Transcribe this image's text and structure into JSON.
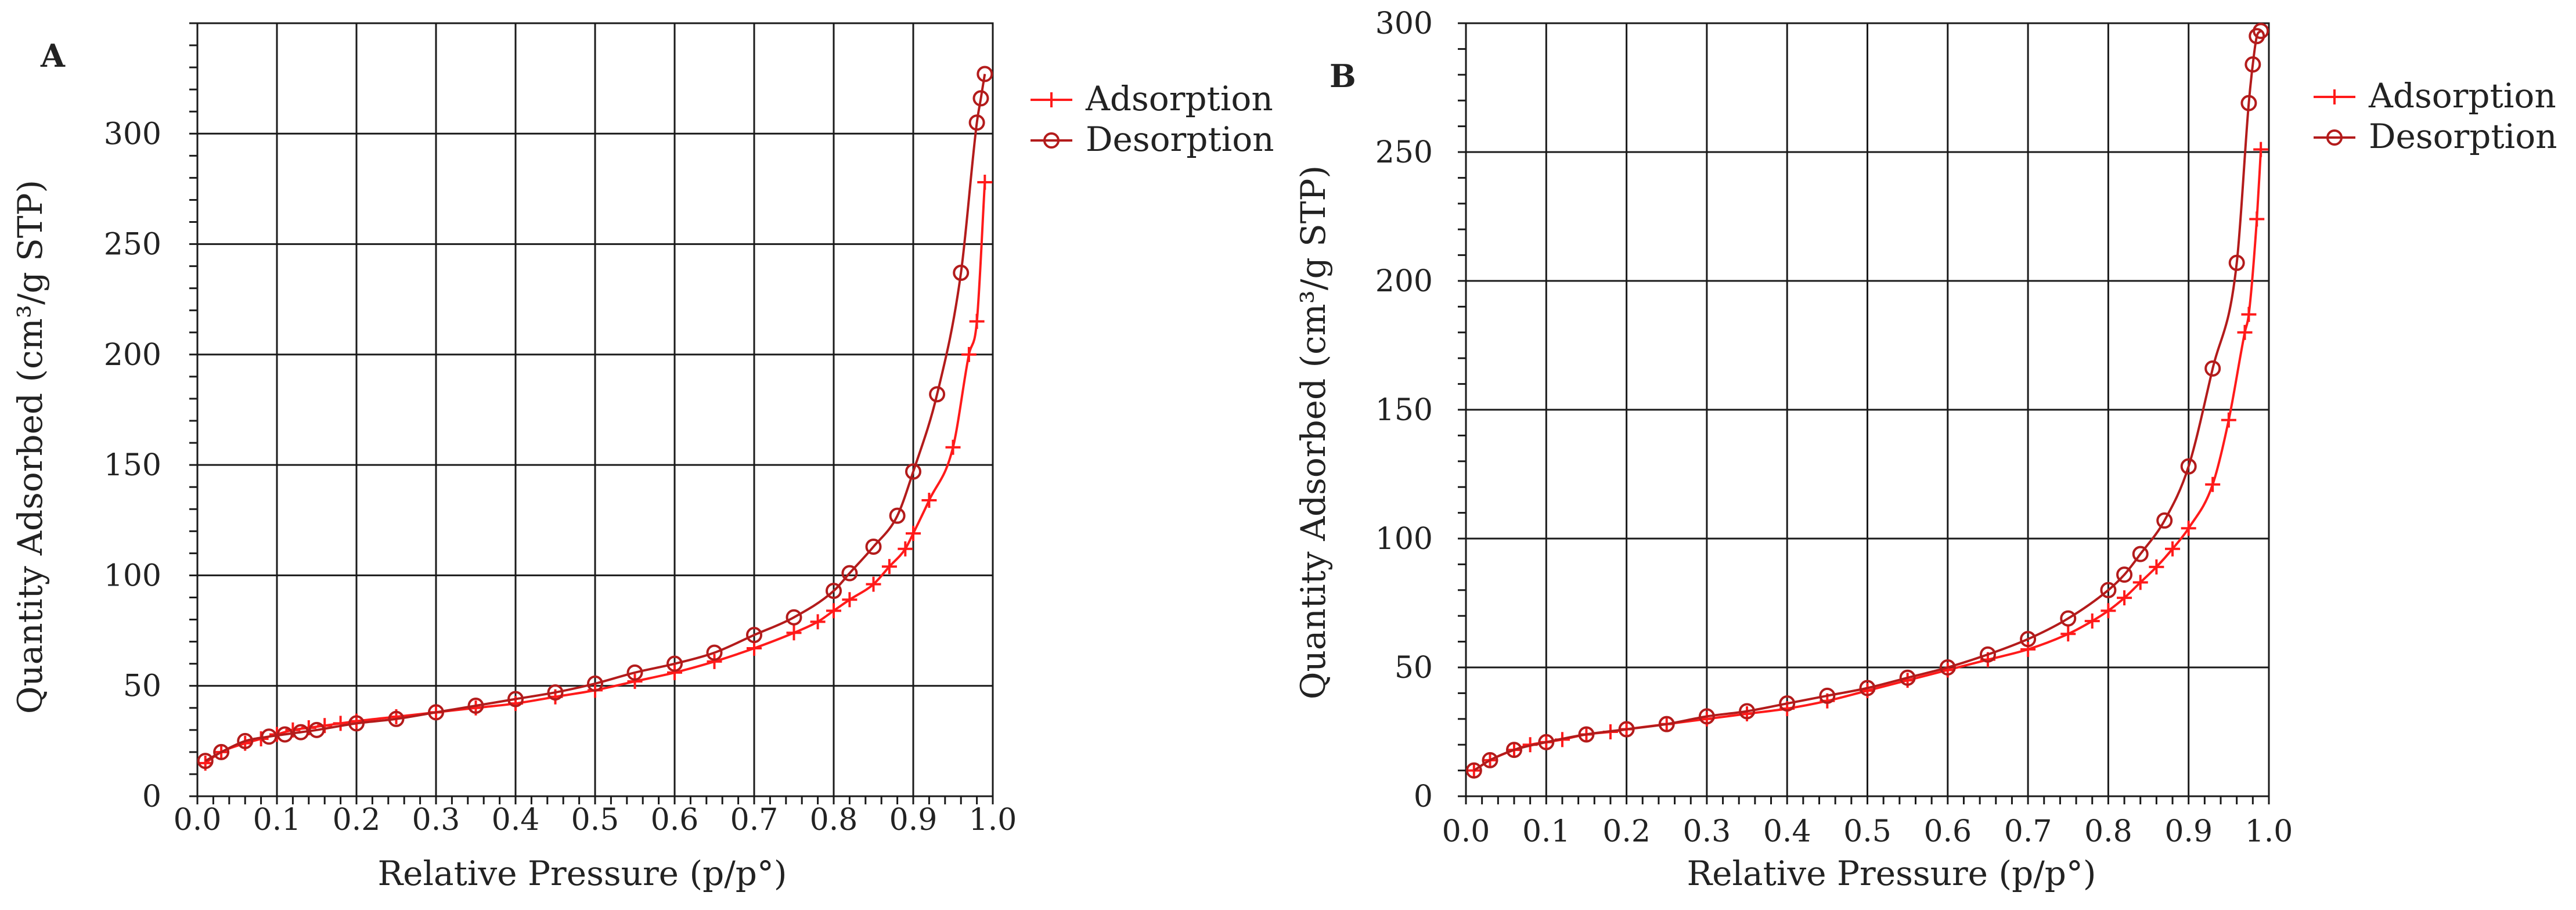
{
  "colors": {
    "adsorption": "#ff1a1a",
    "desorption": "#b31b1b",
    "grid": "#1a1a1a"
  },
  "chart_data": [
    {
      "type": "line",
      "panel": "A",
      "xlabel": "Relative Pressure (p/p°)",
      "ylabel": "Quantity Adsorbed (cm³/g STP)",
      "xlim": [
        0.0,
        1.0
      ],
      "ylim": [
        0,
        350
      ],
      "grid": true,
      "legend_position": "top-right-outside",
      "x_ticks": [
        "0.0",
        "0.1",
        "0.2",
        "0.3",
        "0.4",
        "0.5",
        "0.6",
        "0.7",
        "0.8",
        "0.9",
        "1.0"
      ],
      "y_ticks": [
        "0",
        "50",
        "100",
        "150",
        "200",
        "250",
        "300"
      ],
      "series": [
        {
          "name": "Adsorption",
          "marker": "plus",
          "x": [
            0.01,
            0.03,
            0.06,
            0.08,
            0.1,
            0.12,
            0.14,
            0.16,
            0.18,
            0.2,
            0.25,
            0.3,
            0.35,
            0.4,
            0.45,
            0.5,
            0.55,
            0.6,
            0.65,
            0.7,
            0.75,
            0.78,
            0.8,
            0.82,
            0.85,
            0.87,
            0.89,
            0.9,
            0.92,
            0.95,
            0.97,
            0.98,
            0.99
          ],
          "y": [
            15,
            20,
            24,
            26,
            28,
            30,
            31,
            32,
            33,
            34,
            36,
            38,
            40,
            42,
            45,
            48,
            52,
            56,
            61,
            67,
            74,
            79,
            84,
            89,
            96,
            104,
            112,
            119,
            134,
            158,
            200,
            215,
            278
          ]
        },
        {
          "name": "Desorption",
          "marker": "circle",
          "x": [
            0.01,
            0.03,
            0.06,
            0.09,
            0.11,
            0.13,
            0.15,
            0.2,
            0.25,
            0.3,
            0.35,
            0.4,
            0.45,
            0.5,
            0.55,
            0.6,
            0.65,
            0.7,
            0.75,
            0.8,
            0.82,
            0.85,
            0.88,
            0.9,
            0.93,
            0.96,
            0.98,
            0.985,
            0.99
          ],
          "y": [
            16,
            20,
            25,
            27,
            28,
            29,
            30,
            33,
            35,
            38,
            41,
            44,
            47,
            51,
            56,
            60,
            65,
            73,
            81,
            93,
            101,
            113,
            127,
            147,
            182,
            237,
            305,
            316,
            327
          ]
        }
      ]
    },
    {
      "type": "line",
      "panel": "B",
      "xlabel": "Relative Pressure (p/p°)",
      "ylabel": "Quantity Adsorbed (cm³/g STP)",
      "xlim": [
        0.0,
        1.0
      ],
      "ylim": [
        0,
        300
      ],
      "grid": true,
      "legend_position": "top-right-outside",
      "x_ticks": [
        "0.0",
        "0.1",
        "0.2",
        "0.3",
        "0.4",
        "0.5",
        "0.6",
        "0.7",
        "0.8",
        "0.9",
        "1.0"
      ],
      "y_ticks": [
        "0",
        "50",
        "100",
        "150",
        "200",
        "250",
        "300"
      ],
      "series": [
        {
          "name": "Adsorption",
          "marker": "plus",
          "x": [
            0.01,
            0.03,
            0.06,
            0.08,
            0.1,
            0.12,
            0.15,
            0.18,
            0.2,
            0.25,
            0.3,
            0.35,
            0.4,
            0.45,
            0.5,
            0.55,
            0.6,
            0.65,
            0.7,
            0.75,
            0.78,
            0.8,
            0.82,
            0.84,
            0.86,
            0.88,
            0.9,
            0.93,
            0.95,
            0.97,
            0.975,
            0.985,
            0.99
          ],
          "y": [
            10,
            14,
            18,
            20,
            21,
            22,
            24,
            25,
            26,
            28,
            30,
            32,
            34,
            37,
            41,
            45,
            49,
            53,
            57,
            63,
            68,
            72,
            77,
            83,
            89,
            96,
            104,
            121,
            146,
            180,
            187,
            224,
            251
          ]
        },
        {
          "name": "Desorption",
          "marker": "circle",
          "x": [
            0.01,
            0.03,
            0.06,
            0.1,
            0.15,
            0.2,
            0.25,
            0.3,
            0.35,
            0.4,
            0.45,
            0.5,
            0.55,
            0.6,
            0.65,
            0.7,
            0.75,
            0.8,
            0.82,
            0.84,
            0.87,
            0.9,
            0.93,
            0.96,
            0.975,
            0.98,
            0.985,
            0.99
          ],
          "y": [
            10,
            14,
            18,
            21,
            24,
            26,
            28,
            31,
            33,
            36,
            39,
            42,
            46,
            50,
            55,
            61,
            69,
            80,
            86,
            94,
            107,
            128,
            166,
            207,
            269,
            284,
            295,
            297
          ]
        }
      ]
    }
  ]
}
